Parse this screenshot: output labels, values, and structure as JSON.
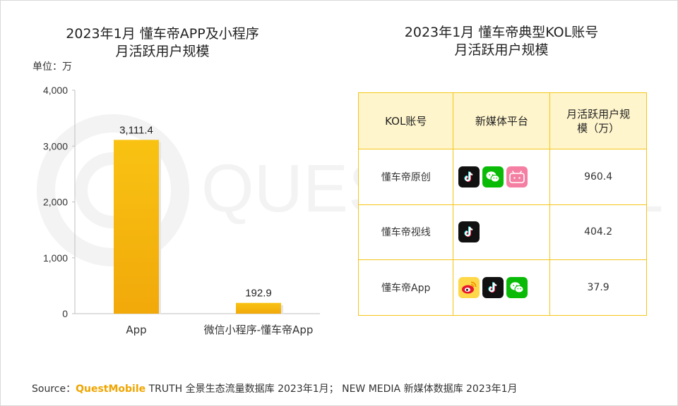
{
  "left_title_line1": "2023年1月 懂车帝APP及小程序",
  "left_title_line2": "月活跃用户规模",
  "unit_label": "单位：万",
  "right_title_line1": "2023年1月 懂车帝典型KOL账号",
  "right_title_line2": "月活跃用户规模",
  "watermark_text": "QUEST MOBILE",
  "colors": {
    "bar": "#f9c313",
    "bar_dark": "#f1a90a",
    "grid_border": "#f5c518",
    "header_bg": "#fff5cc",
    "brand": "#f0a500"
  },
  "chart_data": {
    "type": "bar",
    "categories": [
      "App",
      "微信小程序-懂车帝App"
    ],
    "values": [
      3111.4,
      192.9
    ],
    "value_labels": [
      "3,111.4",
      "192.9"
    ],
    "ylim": [
      0,
      4000
    ],
    "yticks": [
      0,
      1000,
      2000,
      3000,
      4000
    ],
    "ytick_labels": [
      "0",
      "1,000",
      "2,000",
      "3,000",
      "4,000"
    ],
    "ylabel": "单位：万",
    "grid": false
  },
  "table": {
    "headers": [
      "KOL账号",
      "新媒体平台",
      "月活跃用户规模（万）"
    ],
    "rows": [
      {
        "account": "懂车帝原创",
        "platforms": [
          "douyin-icon",
          "wechat-icon",
          "bilibili-icon"
        ],
        "mau": "960.4"
      },
      {
        "account": "懂车帝视线",
        "platforms": [
          "douyin-icon"
        ],
        "mau": "404.2"
      },
      {
        "account": "懂车帝App",
        "platforms": [
          "weibo-icon",
          "douyin-icon",
          "wechat-icon"
        ],
        "mau": "37.9"
      }
    ]
  },
  "source": {
    "prefix": "Source：",
    "brand": "QuestMobile",
    "rest": " TRUTH 全景生态流量数据库 2023年1月； NEW MEDIA 新媒体数据库 2023年1月"
  }
}
